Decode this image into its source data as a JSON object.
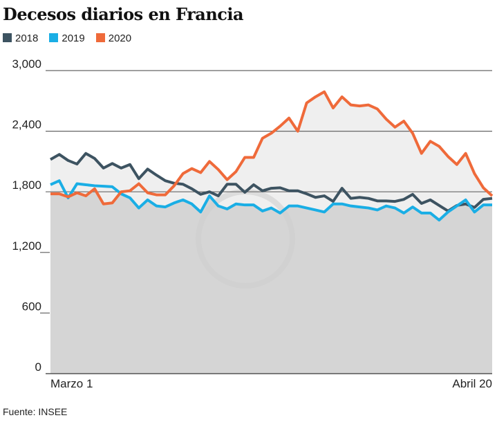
{
  "chart_data": {
    "type": "line",
    "title": "Decesos diarios en Francia",
    "source": "Fuente: INSEE",
    "xlabel": "",
    "ylabel": "",
    "x_tick_labels": [
      "Marzo 1",
      "Abril 20"
    ],
    "y_ticks": [
      0,
      600,
      1200,
      1800,
      2400,
      3000
    ],
    "y_tick_labels": [
      "0",
      "600",
      "1,200",
      "1,800",
      "2,400",
      "3,000"
    ],
    "ylim": [
      0,
      3000
    ],
    "legend_placement": "top-left",
    "series": [
      {
        "name": "2018",
        "color": "#3d5361",
        "values": [
          2120,
          2170,
          2110,
          2075,
          2180,
          2130,
          2035,
          2080,
          2035,
          2070,
          1930,
          2025,
          1965,
          1910,
          1885,
          1875,
          1830,
          1775,
          1800,
          1760,
          1875,
          1875,
          1795,
          1870,
          1810,
          1835,
          1840,
          1810,
          1810,
          1780,
          1745,
          1760,
          1705,
          1835,
          1735,
          1745,
          1735,
          1710,
          1710,
          1705,
          1725,
          1775,
          1685,
          1720,
          1665,
          1610,
          1665,
          1680,
          1645,
          1725,
          1735
        ]
      },
      {
        "name": "2019",
        "color": "#1aaee5",
        "values": [
          1870,
          1910,
          1740,
          1880,
          1870,
          1860,
          1855,
          1850,
          1780,
          1740,
          1640,
          1720,
          1660,
          1650,
          1690,
          1720,
          1680,
          1600,
          1760,
          1660,
          1630,
          1680,
          1670,
          1670,
          1610,
          1640,
          1590,
          1660,
          1660,
          1640,
          1620,
          1600,
          1680,
          1680,
          1660,
          1650,
          1640,
          1620,
          1660,
          1640,
          1590,
          1650,
          1590,
          1590,
          1520,
          1600,
          1660,
          1720,
          1600,
          1670,
          1670
        ]
      },
      {
        "name": "2020",
        "color": "#ef6a3a",
        "values": [
          1780,
          1780,
          1750,
          1790,
          1760,
          1830,
          1680,
          1690,
          1800,
          1810,
          1880,
          1790,
          1770,
          1770,
          1860,
          1980,
          2030,
          1990,
          2100,
          2020,
          1920,
          2000,
          2140,
          2140,
          2330,
          2380,
          2450,
          2530,
          2400,
          2680,
          2740,
          2790,
          2630,
          2740,
          2660,
          2650,
          2660,
          2620,
          2520,
          2440,
          2500,
          2380,
          2180,
          2300,
          2250,
          2150,
          2070,
          2180,
          1980,
          1840,
          1760
        ]
      }
    ]
  }
}
